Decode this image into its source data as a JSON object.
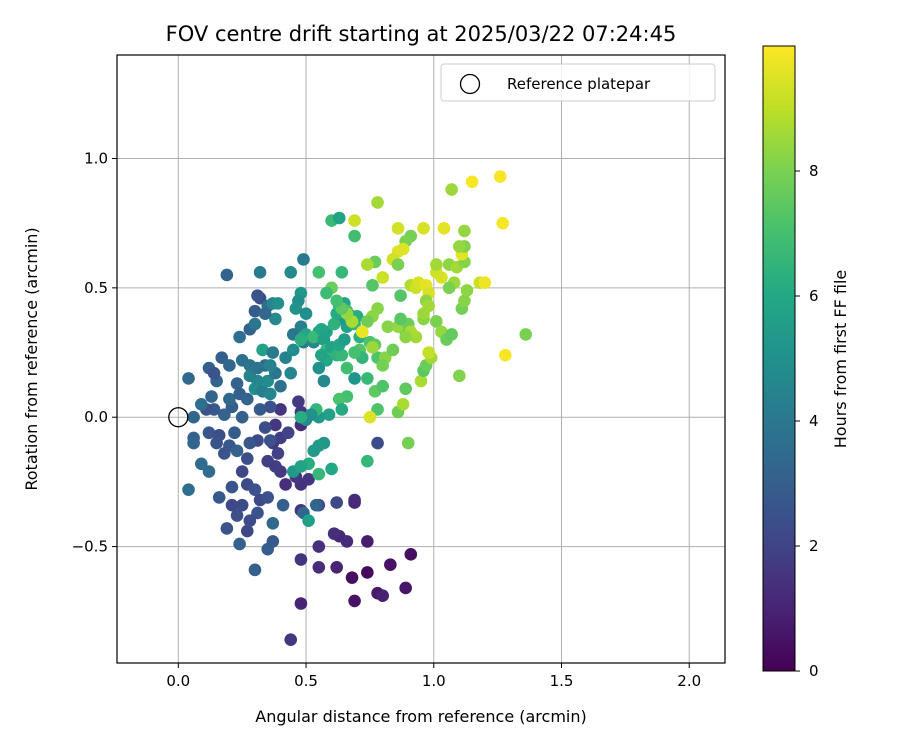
{
  "chart_data": {
    "type": "scatter",
    "title": "FOV centre drift starting at 2025/03/22 07:24:45",
    "xlabel": "Angular distance from reference (arcmin)",
    "ylabel": "Rotation from reference (arcmin)",
    "xlim": [
      -0.24,
      2.14
    ],
    "ylim": [
      -0.95,
      1.4
    ],
    "xticks": [
      0.0,
      0.5,
      1.0,
      1.5,
      2.0
    ],
    "xtick_labels": [
      "0.0",
      "0.5",
      "1.0",
      "1.5",
      "2.0"
    ],
    "yticks": [
      -0.5,
      0.0,
      0.5,
      1.0
    ],
    "ytick_labels": [
      "−0.5",
      "0.0",
      "0.5",
      "1.0"
    ],
    "grid": true,
    "legend": {
      "position": "top-right",
      "entries": [
        {
          "label": "Reference platepar",
          "marker": "open-circle",
          "x": 0.0,
          "y": 0.0
        }
      ]
    },
    "colorbar": {
      "label": "Hours from first FF file",
      "colormap": "viridis",
      "range": [
        0,
        10
      ],
      "ticks": [
        0,
        2,
        4,
        6,
        8
      ],
      "tick_labels": [
        "0",
        "2",
        "4",
        "6",
        "8"
      ]
    },
    "point_series_encoding": [
      "x",
      "y",
      "hours"
    ],
    "points": [
      [
        0.48,
        -0.72,
        1.0
      ],
      [
        0.44,
        -0.86,
        1.6
      ],
      [
        0.69,
        -0.71,
        0.5
      ],
      [
        0.78,
        -0.68,
        0.7
      ],
      [
        0.8,
        -0.69,
        0.9
      ],
      [
        0.89,
        -0.66,
        0.6
      ],
      [
        0.91,
        -0.53,
        0.4
      ],
      [
        0.83,
        -0.57,
        0.5
      ],
      [
        0.74,
        -0.6,
        0.3
      ],
      [
        0.74,
        -0.48,
        0.8
      ],
      [
        0.68,
        -0.62,
        0.4
      ],
      [
        0.62,
        -0.58,
        1.0
      ],
      [
        0.55,
        -0.58,
        1.3
      ],
      [
        0.48,
        -0.55,
        1.5
      ],
      [
        0.55,
        -0.5,
        1.4
      ],
      [
        0.63,
        -0.46,
        1.1
      ],
      [
        0.66,
        -0.48,
        1.2
      ],
      [
        0.61,
        -0.45,
        1.3
      ],
      [
        0.69,
        -0.33,
        1.2
      ],
      [
        0.69,
        -0.32,
        1.2
      ],
      [
        0.62,
        -0.33,
        2.2
      ],
      [
        0.55,
        -0.34,
        2.1
      ],
      [
        0.48,
        -0.36,
        1.6
      ],
      [
        0.48,
        -0.26,
        1.4
      ],
      [
        0.51,
        -0.24,
        1.5
      ],
      [
        0.46,
        -0.23,
        1.6
      ],
      [
        0.42,
        -0.26,
        1.3
      ],
      [
        0.4,
        -0.21,
        1.7
      ],
      [
        0.38,
        -0.19,
        1.8
      ],
      [
        0.35,
        -0.17,
        1.8
      ],
      [
        0.39,
        -0.14,
        1.9
      ],
      [
        0.37,
        -0.1,
        1.6
      ],
      [
        0.4,
        -0.08,
        1.8
      ],
      [
        0.38,
        -0.03,
        1.6
      ],
      [
        0.43,
        -0.06,
        2.0
      ],
      [
        0.48,
        -0.03,
        1.3
      ],
      [
        0.48,
        0.02,
        1.6
      ],
      [
        0.47,
        0.06,
        1.7
      ],
      [
        0.4,
        0.03,
        1.5
      ],
      [
        0.36,
        0.04,
        2.5
      ],
      [
        0.32,
        0.03,
        2.8
      ],
      [
        0.34,
        -0.04,
        2.4
      ],
      [
        0.36,
        -0.09,
        2.6
      ],
      [
        0.31,
        -0.09,
        2.2
      ],
      [
        0.28,
        -0.1,
        2.7
      ],
      [
        0.27,
        -0.16,
        2.4
      ],
      [
        0.25,
        -0.21,
        2.1
      ],
      [
        0.27,
        -0.26,
        2.3
      ],
      [
        0.3,
        -0.28,
        2.5
      ],
      [
        0.32,
        -0.32,
        2.2
      ],
      [
        0.35,
        -0.31,
        2.5
      ],
      [
        0.31,
        -0.37,
        2.6
      ],
      [
        0.28,
        -0.4,
        2.3
      ],
      [
        0.27,
        -0.44,
        2.2
      ],
      [
        0.25,
        -0.34,
        2.3
      ],
      [
        0.23,
        -0.38,
        2.4
      ],
      [
        0.21,
        -0.34,
        2.2
      ],
      [
        0.19,
        -0.43,
        2.5
      ],
      [
        0.16,
        -0.31,
        2.8
      ],
      [
        0.21,
        -0.27,
        2.6
      ],
      [
        0.24,
        -0.49,
        3.1
      ],
      [
        0.3,
        -0.59,
        3.0
      ],
      [
        0.35,
        -0.51,
        3.0
      ],
      [
        0.37,
        -0.48,
        2.8
      ],
      [
        0.37,
        -0.41,
        3.4
      ],
      [
        0.41,
        -0.34,
        3.0
      ],
      [
        0.54,
        -0.34,
        3.2
      ],
      [
        0.49,
        -0.37,
        3.3
      ],
      [
        0.51,
        -0.4,
        5.6
      ],
      [
        0.45,
        -0.21,
        5.3
      ],
      [
        0.04,
        -0.28,
        3.6
      ],
      [
        0.09,
        -0.18,
        3.5
      ],
      [
        0.12,
        -0.21,
        3.5
      ],
      [
        0.06,
        -0.08,
        3.1
      ],
      [
        0.06,
        -0.1,
        3.2
      ],
      [
        0.12,
        -0.06,
        2.7
      ],
      [
        0.16,
        -0.07,
        2.4
      ],
      [
        0.15,
        -0.1,
        2.6
      ],
      [
        0.18,
        -0.14,
        2.5
      ],
      [
        0.2,
        -0.11,
        2.7
      ],
      [
        0.22,
        -0.06,
        2.9
      ],
      [
        0.23,
        -0.13,
        3.1
      ],
      [
        0.25,
        0.0,
        3.1
      ],
      [
        0.21,
        0.04,
        3.0
      ],
      [
        0.24,
        0.09,
        3.0
      ],
      [
        0.27,
        0.07,
        3.2
      ],
      [
        0.2,
        0.07,
        3.4
      ],
      [
        0.18,
        0.01,
        3.1
      ],
      [
        0.14,
        0.03,
        2.8
      ],
      [
        0.11,
        0.03,
        2.5
      ],
      [
        0.13,
        0.08,
        3.2
      ],
      [
        0.09,
        0.05,
        3.6
      ],
      [
        0.06,
        0.0,
        3.3
      ],
      [
        0.04,
        0.15,
        3.4
      ],
      [
        0.12,
        0.19,
        3.0
      ],
      [
        0.15,
        0.14,
        3.2
      ],
      [
        0.14,
        0.17,
        2.6
      ],
      [
        0.17,
        0.23,
        3.0
      ],
      [
        0.2,
        0.2,
        3.3
      ],
      [
        0.23,
        0.13,
        3.2
      ],
      [
        0.25,
        0.22,
        3.6
      ],
      [
        0.28,
        0.2,
        3.8
      ],
      [
        0.31,
        0.14,
        4.5
      ],
      [
        0.3,
        0.11,
        4.8
      ],
      [
        0.28,
        0.16,
        4.4
      ],
      [
        0.33,
        0.1,
        4.2
      ],
      [
        0.36,
        0.09,
        4.6
      ],
      [
        0.35,
        0.14,
        4.8
      ],
      [
        0.34,
        0.2,
        3.6
      ],
      [
        0.33,
        0.26,
        5.7
      ],
      [
        0.37,
        0.25,
        4.1
      ],
      [
        0.42,
        0.23,
        4.4
      ],
      [
        0.45,
        0.26,
        4.8
      ],
      [
        0.44,
        0.17,
        4.6
      ],
      [
        0.4,
        0.12,
        3.7
      ],
      [
        0.38,
        0.17,
        3.9
      ],
      [
        0.36,
        0.2,
        4.4
      ],
      [
        0.31,
        0.19,
        3.8
      ],
      [
        0.24,
        0.31,
        3.6
      ],
      [
        0.28,
        0.34,
        3.1
      ],
      [
        0.3,
        0.36,
        3.9
      ],
      [
        0.3,
        0.41,
        2.9
      ],
      [
        0.32,
        0.46,
        2.3
      ],
      [
        0.35,
        0.43,
        3.6
      ],
      [
        0.37,
        0.44,
        4.5
      ],
      [
        0.39,
        0.44,
        4.9
      ],
      [
        0.38,
        0.38,
        4.7
      ],
      [
        0.34,
        0.4,
        3.4
      ],
      [
        0.31,
        0.47,
        2.5
      ],
      [
        0.19,
        0.55,
        3.2
      ],
      [
        0.32,
        0.56,
        4.1
      ],
      [
        0.44,
        0.56,
        4.7
      ],
      [
        0.49,
        0.61,
        4.1
      ],
      [
        0.48,
        0.48,
        5.3
      ],
      [
        0.47,
        0.45,
        4.9
      ],
      [
        0.46,
        0.42,
        5.1
      ],
      [
        0.5,
        0.4,
        4.9
      ],
      [
        0.48,
        0.35,
        4.3
      ],
      [
        0.45,
        0.32,
        3.9
      ],
      [
        0.49,
        0.29,
        4.0
      ],
      [
        0.53,
        0.29,
        4.7
      ],
      [
        0.55,
        0.33,
        5.6
      ],
      [
        0.5,
        0.32,
        5.9
      ],
      [
        0.48,
        0.3,
        6.3
      ],
      [
        0.53,
        0.31,
        6.7
      ],
      [
        0.56,
        0.34,
        6.0
      ],
      [
        0.58,
        0.33,
        5.8
      ],
      [
        0.57,
        0.3,
        5.6
      ],
      [
        0.58,
        0.26,
        6.6
      ],
      [
        0.58,
        0.22,
        6.0
      ],
      [
        0.56,
        0.24,
        5.8
      ],
      [
        0.55,
        0.19,
        5.0
      ],
      [
        0.57,
        0.14,
        4.7
      ],
      [
        0.6,
        0.27,
        5.8
      ],
      [
        0.62,
        0.24,
        6.4
      ],
      [
        0.64,
        0.24,
        6.6
      ],
      [
        0.63,
        0.28,
        5.9
      ],
      [
        0.65,
        0.3,
        5.5
      ],
      [
        0.66,
        0.35,
        5.6
      ],
      [
        0.63,
        0.38,
        5.2
      ],
      [
        0.61,
        0.36,
        6.4
      ],
      [
        0.62,
        0.4,
        6.1
      ],
      [
        0.63,
        0.43,
        6.4
      ],
      [
        0.65,
        0.44,
        5.8
      ],
      [
        0.66,
        0.41,
        7.0
      ],
      [
        0.68,
        0.39,
        6.2
      ],
      [
        0.69,
        0.36,
        6.6
      ],
      [
        0.7,
        0.39,
        6.2
      ],
      [
        0.71,
        0.31,
        6.3
      ],
      [
        0.72,
        0.33,
        6.5
      ],
      [
        0.71,
        0.26,
        7.3
      ],
      [
        0.72,
        0.23,
        6.5
      ],
      [
        0.69,
        0.25,
        7.0
      ],
      [
        0.66,
        0.19,
        6.9
      ],
      [
        0.69,
        0.15,
        5.2
      ],
      [
        0.66,
        0.08,
        7.0
      ],
      [
        0.63,
        0.07,
        7.1
      ],
      [
        0.64,
        0.03,
        6.1
      ],
      [
        0.59,
        0.01,
        5.7
      ],
      [
        0.55,
        0.0,
        5.4
      ],
      [
        0.54,
        0.03,
        6.6
      ],
      [
        0.52,
        0.01,
        5.0
      ],
      [
        0.5,
        -0.01,
        4.8
      ],
      [
        0.57,
        -0.1,
        5.2
      ],
      [
        0.55,
        -0.11,
        5.4
      ],
      [
        0.53,
        -0.13,
        5.4
      ],
      [
        0.55,
        -0.22,
        6.6
      ],
      [
        0.6,
        -0.2,
        6.0
      ],
      [
        0.51,
        -0.18,
        6.2
      ],
      [
        0.48,
        -0.19,
        5.8
      ],
      [
        0.48,
        0.0,
        6.2
      ],
      [
        0.74,
        0.15,
        6.7
      ],
      [
        0.77,
        0.1,
        7.5
      ],
      [
        0.8,
        0.12,
        7.2
      ],
      [
        0.78,
        0.03,
        7.2
      ],
      [
        0.78,
        -0.1,
        2.3
      ],
      [
        0.74,
        -0.17,
        6.6
      ],
      [
        0.9,
        -0.1,
        7.9
      ],
      [
        0.86,
        0.02,
        7.8
      ],
      [
        0.88,
        0.05,
        8.7
      ],
      [
        0.89,
        0.11,
        7.5
      ],
      [
        0.95,
        0.14,
        8.7
      ],
      [
        0.96,
        0.18,
        7.4
      ],
      [
        0.97,
        0.2,
        7.7
      ],
      [
        0.99,
        0.23,
        8.6
      ],
      [
        0.98,
        0.25,
        9.1
      ],
      [
        0.93,
        0.31,
        8.6
      ],
      [
        0.89,
        0.33,
        7.4
      ],
      [
        0.86,
        0.35,
        8.4
      ],
      [
        0.9,
        0.36,
        7.8
      ],
      [
        0.87,
        0.38,
        7.4
      ],
      [
        0.96,
        0.38,
        8.2
      ],
      [
        1.01,
        0.37,
        8.0
      ],
      [
        1.03,
        0.33,
        8.4
      ],
      [
        1.05,
        0.3,
        7.7
      ],
      [
        1.07,
        0.32,
        7.6
      ],
      [
        1.1,
        0.16,
        8.1
      ],
      [
        1.11,
        0.42,
        7.9
      ],
      [
        1.12,
        0.45,
        8.2
      ],
      [
        1.13,
        0.49,
        8.3
      ],
      [
        1.18,
        0.52,
        9.2
      ],
      [
        1.08,
        0.52,
        8.5
      ],
      [
        1.06,
        0.5,
        8.0
      ],
      [
        1.03,
        0.54,
        9.4
      ],
      [
        1.01,
        0.56,
        9.3
      ],
      [
        1.01,
        0.59,
        8.6
      ],
      [
        1.06,
        0.59,
        8.3
      ],
      [
        1.09,
        0.58,
        8.6
      ],
      [
        1.12,
        0.6,
        8.2
      ],
      [
        1.11,
        0.63,
        9.6
      ],
      [
        1.12,
        0.66,
        8.1
      ],
      [
        1.1,
        0.66,
        8.4
      ],
      [
        1.04,
        0.73,
        9.6
      ],
      [
        1.12,
        0.72,
        8.4
      ],
      [
        0.96,
        0.73,
        9.4
      ],
      [
        0.91,
        0.7,
        7.9
      ],
      [
        0.89,
        0.68,
        8.0
      ],
      [
        0.86,
        0.73,
        9.3
      ],
      [
        0.88,
        0.65,
        9.5
      ],
      [
        0.86,
        0.64,
        9.5
      ],
      [
        0.84,
        0.61,
        9.3
      ],
      [
        0.86,
        0.59,
        8.0
      ],
      [
        0.77,
        0.6,
        7.7
      ],
      [
        0.74,
        0.59,
        8.7
      ],
      [
        0.76,
        0.51,
        7.3
      ],
      [
        0.8,
        0.54,
        9.2
      ],
      [
        0.87,
        0.47,
        7.3
      ],
      [
        0.91,
        0.51,
        8.8
      ],
      [
        0.93,
        0.5,
        9.2
      ],
      [
        0.94,
        0.52,
        9.4
      ],
      [
        0.97,
        0.51,
        9.6
      ],
      [
        0.98,
        0.48,
        9.4
      ],
      [
        0.97,
        0.45,
        8.3
      ],
      [
        0.98,
        0.43,
        8.6
      ],
      [
        0.96,
        0.4,
        8.5
      ],
      [
        0.91,
        0.33,
        8.7
      ],
      [
        0.89,
        0.31,
        8.3
      ],
      [
        0.82,
        0.35,
        8.2
      ],
      [
        0.78,
        0.42,
        8.2
      ],
      [
        0.76,
        0.39,
        8.3
      ],
      [
        0.74,
        0.37,
        7.8
      ],
      [
        0.75,
        0.29,
        7.1
      ],
      [
        0.77,
        0.28,
        7.5
      ],
      [
        0.78,
        0.23,
        7.2
      ],
      [
        0.81,
        0.23,
        8.2
      ],
      [
        0.84,
        0.26,
        7.8
      ],
      [
        0.8,
        0.2,
        7.9
      ],
      [
        0.76,
        0.27,
        8.5
      ],
      [
        0.72,
        0.33,
        9.7
      ],
      [
        0.68,
        0.37,
        8.7
      ],
      [
        0.66,
        0.4,
        8.4
      ],
      [
        0.64,
        0.42,
        7.5
      ],
      [
        0.62,
        0.45,
        7.0
      ],
      [
        0.6,
        0.5,
        7.7
      ],
      [
        0.6,
        0.76,
        6.7
      ],
      [
        0.63,
        0.77,
        5.8
      ],
      [
        0.64,
        0.56,
        6.6
      ],
      [
        0.58,
        0.48,
        6.8
      ],
      [
        0.55,
        0.56,
        7.0
      ],
      [
        0.69,
        0.7,
        6.9
      ],
      [
        0.69,
        0.76,
        9.2
      ],
      [
        0.78,
        0.83,
        8.6
      ],
      [
        1.07,
        0.88,
        8.5
      ],
      [
        1.15,
        0.91,
        9.9
      ],
      [
        1.26,
        0.93,
        9.9
      ],
      [
        1.27,
        0.75,
        9.9
      ],
      [
        1.2,
        0.52,
        9.8
      ],
      [
        1.28,
        0.24,
        9.9
      ],
      [
        1.36,
        0.32,
        8.0
      ],
      [
        0.75,
        0.0,
        9.5
      ]
    ]
  }
}
